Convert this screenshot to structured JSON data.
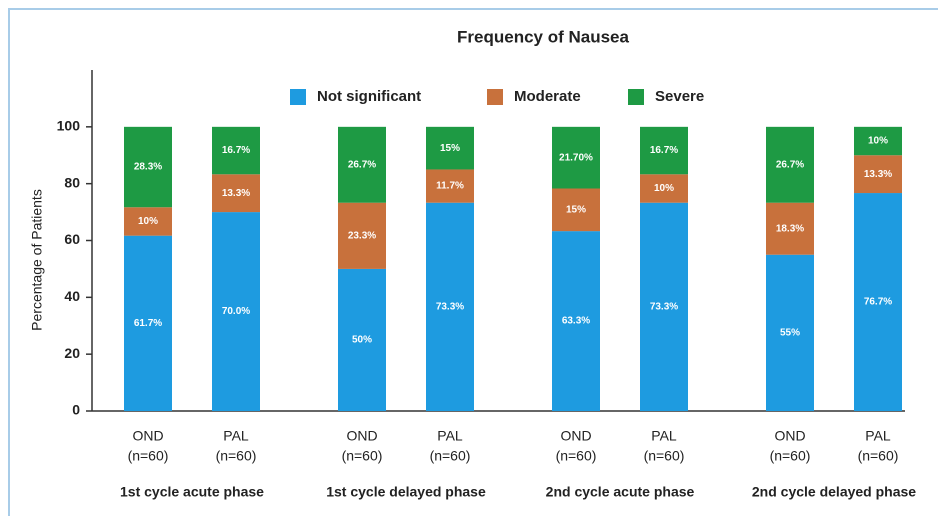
{
  "chart_data": {
    "type": "stacked-bar",
    "title": "Frequency of Nausea",
    "ylabel": "Percentage of Patients",
    "categories": [
      "OND",
      "PAL",
      "OND",
      "PAL",
      "OND",
      "PAL",
      "OND",
      "PAL"
    ],
    "category_sublabels": [
      "(n=60)",
      "(n=60)",
      "(n=60)",
      "(n=60)",
      "(n=60)",
      "(n=60)",
      "(n=60)",
      "(n=60)"
    ],
    "groups": [
      "1st cycle acute phase",
      "1st cycle delayed phase",
      "2nd cycle acute phase",
      "2nd cycle delayed phase"
    ],
    "series": [
      {
        "name": "Not significant",
        "color": "#1e9be0",
        "values": [
          61.7,
          70,
          50,
          73.3,
          63.3,
          73.3,
          55,
          76.7
        ],
        "value_labels": [
          "61.7%",
          "70.0%",
          "50%",
          "73.3%",
          "63.3%",
          "73.3%",
          "55%",
          "76.7%"
        ]
      },
      {
        "name": "Moderate",
        "color": "#c8713c",
        "values": [
          10,
          13.3,
          23.3,
          11.7,
          15,
          10,
          18.3,
          13.3
        ],
        "value_labels": [
          "10%",
          "13.3%",
          "23.3%",
          "11.7%",
          "15%",
          "10%",
          "18.3%",
          "13.3%"
        ]
      },
      {
        "name": "Severe",
        "color": "#1e9a44",
        "values": [
          28.3,
          16.7,
          26.7,
          15,
          21.7,
          16.7,
          26.7,
          10
        ],
        "value_labels": [
          "28.3%",
          "16.7%",
          "26.7%",
          "15%",
          "21.70%",
          "16.7%",
          "26.7%",
          "10%"
        ]
      }
    ],
    "ylim": [
      0,
      120
    ],
    "yticks": [
      0,
      20,
      40,
      60,
      80,
      100
    ],
    "grid": false,
    "legend": "top"
  }
}
